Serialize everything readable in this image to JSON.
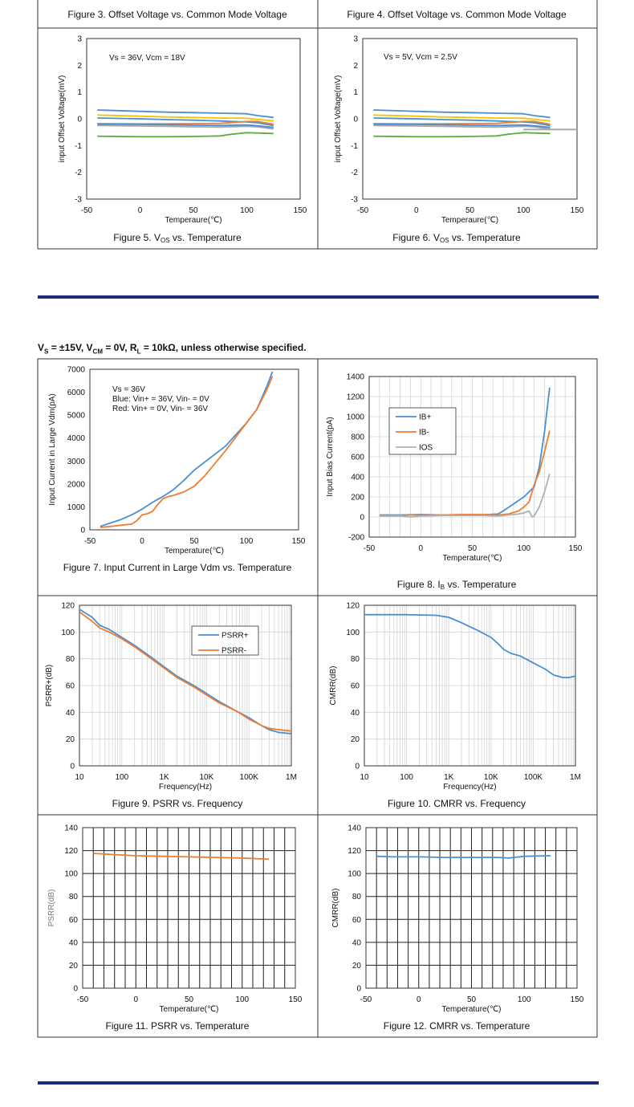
{
  "section": {
    "conditions": "Vs = ±15V, VCM = 0V, RL = 10kΩ, unless otherwise specified.",
    "cond_parts": {
      "vs": "V",
      "vs_sub": "S",
      "p1": " = ±15V, V",
      "vcm_sub": "CM",
      "p2": " = 0V, R",
      "rl_sub": "L",
      "p3": " = 10kΩ, unless otherwise specified."
    }
  },
  "colors": {
    "frame": "#333333",
    "rule": "#1f2a80",
    "grid": "#d4d4d4",
    "blue": "#4a8fd2",
    "orange": "#ed7d31",
    "gray": "#a6a6a6",
    "green": "#5fae3c",
    "yellow": "#f4c400",
    "ios_gray": "#b0b0b0"
  },
  "chart_data": [
    {
      "id": "fig3",
      "type": "caption",
      "title": "Figure 3. Offset Voltage vs. Common Mode Voltage"
    },
    {
      "id": "fig4",
      "type": "caption",
      "title": "Figure 4. Offset Voltage vs. Common Mode Voltage"
    },
    {
      "id": "fig5",
      "type": "line",
      "title": "Figure 5. VOS vs. Temperature",
      "xlabel": "Temperaure(℃)",
      "ylabel": "input Offset Voltage(mV)",
      "xlim": [
        -50,
        150
      ],
      "ylim": [
        -3,
        3
      ],
      "xticks": [
        -50,
        0,
        50,
        100,
        150
      ],
      "yticks": [
        -3,
        -2,
        -1,
        0,
        1,
        2,
        3
      ],
      "grid": false,
      "annotation": [
        "Vs = 36V, Vcm = 18V"
      ],
      "series": [
        {
          "color": "blue",
          "x": [
            -40,
            0,
            25,
            50,
            75,
            100,
            110,
            125
          ],
          "y": [
            0.33,
            0.28,
            0.25,
            0.23,
            0.21,
            0.19,
            0.12,
            0.05
          ]
        },
        {
          "color": "yellow",
          "x": [
            -40,
            0,
            25,
            50,
            75,
            100,
            110,
            125
          ],
          "y": [
            0.14,
            0.1,
            0.07,
            0.05,
            0.03,
            0.02,
            -0.02,
            -0.08
          ]
        },
        {
          "color": "blue",
          "x": [
            -40,
            0,
            25,
            50,
            75,
            100,
            110,
            125
          ],
          "y": [
            0.03,
            0.0,
            -0.03,
            -0.05,
            -0.08,
            -0.12,
            -0.15,
            -0.25
          ]
        },
        {
          "color": "orange",
          "x": [
            -40,
            0,
            25,
            50,
            75,
            100,
            110,
            125
          ],
          "y": [
            -0.18,
            -0.19,
            -0.19,
            -0.18,
            -0.17,
            -0.1,
            -0.1,
            -0.2
          ]
        },
        {
          "color": "gray",
          "x": [
            -40,
            0,
            25,
            50,
            75,
            100,
            110,
            125
          ],
          "y": [
            -0.25,
            -0.27,
            -0.28,
            -0.3,
            -0.31,
            -0.28,
            -0.3,
            -0.38
          ]
        },
        {
          "color": "blue",
          "x": [
            -40,
            0,
            25,
            50,
            75,
            100,
            110,
            125
          ],
          "y": [
            -0.2,
            -0.21,
            -0.22,
            -0.24,
            -0.25,
            -0.23,
            -0.26,
            -0.32
          ]
        },
        {
          "color": "green",
          "x": [
            -40,
            0,
            25,
            50,
            75,
            85,
            100,
            125
          ],
          "y": [
            -0.65,
            -0.67,
            -0.67,
            -0.66,
            -0.64,
            -0.58,
            -0.52,
            -0.55
          ]
        }
      ]
    },
    {
      "id": "fig6",
      "type": "line",
      "title": "Figure 6. VOS vs. Temperature",
      "xlabel": "Temperaure(℃)",
      "ylabel": "input Offset Voltage(mV)",
      "xlim": [
        -50,
        150
      ],
      "ylim": [
        -3,
        3
      ],
      "xticks": [
        -50,
        0,
        50,
        100,
        150
      ],
      "yticks": [
        -3,
        -2,
        -1,
        0,
        1,
        2,
        3
      ],
      "grid": false,
      "annotation": [
        "Vs = 5V, Vcm = 2.5V"
      ],
      "series": [
        {
          "color": "blue",
          "x": [
            -40,
            0,
            25,
            50,
            75,
            100,
            110,
            125
          ],
          "y": [
            0.33,
            0.28,
            0.25,
            0.23,
            0.21,
            0.19,
            0.12,
            0.05
          ]
        },
        {
          "color": "yellow",
          "x": [
            -40,
            0,
            25,
            50,
            75,
            100,
            110,
            125
          ],
          "y": [
            0.14,
            0.1,
            0.07,
            0.05,
            0.03,
            0.02,
            -0.02,
            -0.08
          ]
        },
        {
          "color": "blue",
          "x": [
            -40,
            0,
            25,
            50,
            75,
            100,
            110,
            125
          ],
          "y": [
            0.03,
            0.0,
            -0.03,
            -0.05,
            -0.08,
            -0.12,
            -0.15,
            -0.25
          ]
        },
        {
          "color": "orange",
          "x": [
            -40,
            0,
            25,
            50,
            75,
            100,
            110,
            125
          ],
          "y": [
            -0.18,
            -0.19,
            -0.19,
            -0.18,
            -0.17,
            -0.1,
            -0.1,
            -0.2
          ]
        },
        {
          "color": "gray",
          "x": [
            -40,
            0,
            25,
            50,
            75,
            100,
            110,
            125
          ],
          "y": [
            -0.25,
            -0.27,
            -0.28,
            -0.3,
            -0.31,
            -0.28,
            -0.3,
            -0.38
          ]
        },
        {
          "color": "blue",
          "x": [
            -40,
            0,
            25,
            50,
            75,
            100,
            110,
            125
          ],
          "y": [
            -0.2,
            -0.21,
            -0.22,
            -0.24,
            -0.25,
            -0.23,
            -0.26,
            -0.32
          ]
        },
        {
          "color": "green",
          "x": [
            -40,
            0,
            25,
            50,
            75,
            85,
            100,
            125
          ],
          "y": [
            -0.65,
            -0.67,
            -0.67,
            -0.66,
            -0.64,
            -0.58,
            -0.52,
            -0.55
          ]
        },
        {
          "color": "gray",
          "x": [
            100,
            150
          ],
          "y": [
            -0.4,
            -0.4
          ]
        }
      ]
    },
    {
      "id": "fig7",
      "type": "line",
      "title": "Figure 7. Input Current in Large Vdm vs. Temperature",
      "xlabel": "Temperature(℃)",
      "ylabel": "Input Current in Large Vdm(pA)",
      "xlim": [
        -50,
        150
      ],
      "ylim": [
        0,
        7000
      ],
      "xticks": [
        -50,
        0,
        50,
        100,
        150
      ],
      "yticks": [
        0,
        1000,
        2000,
        3000,
        4000,
        5000,
        6000,
        7000
      ],
      "grid": false,
      "annotation": [
        "Vs = 36V",
        "Blue: Vin+ = 36V, Vin- = 0V",
        "Red: Vin+ = 0V, Vin- = 36V"
      ],
      "series": [
        {
          "color": "blue",
          "x": [
            -40,
            -30,
            -20,
            -10,
            0,
            10,
            20,
            30,
            40,
            50,
            60,
            70,
            80,
            90,
            100,
            110,
            120,
            125
          ],
          "y": [
            150,
            300,
            450,
            650,
            900,
            1200,
            1450,
            1750,
            2150,
            2600,
            2950,
            3300,
            3650,
            4150,
            4650,
            5250,
            6300,
            6900
          ]
        },
        {
          "color": "orange",
          "x": [
            -40,
            -30,
            -20,
            -10,
            -5,
            0,
            5,
            10,
            15,
            20,
            25,
            30,
            40,
            50,
            60,
            70,
            80,
            90,
            100,
            110,
            120,
            125
          ],
          "y": [
            100,
            150,
            200,
            250,
            400,
            650,
            700,
            800,
            1100,
            1350,
            1450,
            1500,
            1650,
            1900,
            2350,
            2900,
            3450,
            4050,
            4650,
            5250,
            6150,
            6700
          ]
        }
      ]
    },
    {
      "id": "fig8",
      "type": "line",
      "title": "Figure 8. IB vs. Temperature",
      "xlabel": "Temperature(℃)",
      "ylabel": "Input Bias Current(pA)",
      "xlim": [
        -50,
        150
      ],
      "ylim": [
        -200,
        1400
      ],
      "xticks": [
        -50,
        0,
        50,
        100,
        150
      ],
      "yticks": [
        -200,
        0,
        200,
        400,
        600,
        800,
        1000,
        1200,
        1400
      ],
      "grid": true,
      "legend": "upper-left",
      "series": [
        {
          "name": "IB+",
          "color": "blue",
          "x": [
            -40,
            -20,
            0,
            20,
            40,
            60,
            75,
            80,
            90,
            100,
            110,
            115,
            120,
            125
          ],
          "y": [
            20,
            20,
            25,
            20,
            22,
            22,
            30,
            60,
            130,
            200,
            300,
            500,
            850,
            1290
          ]
        },
        {
          "name": "IB-",
          "color": "orange",
          "x": [
            -40,
            -20,
            -10,
            0,
            20,
            40,
            60,
            75,
            85,
            95,
            100,
            105,
            110,
            115,
            120,
            125
          ],
          "y": [
            15,
            15,
            20,
            20,
            20,
            25,
            25,
            20,
            30,
            60,
            100,
            150,
            320,
            450,
            650,
            860
          ]
        },
        {
          "name": "IOS",
          "color": "ios_gray",
          "x": [
            -40,
            -20,
            -10,
            0,
            20,
            40,
            60,
            75,
            85,
            95,
            100,
            105,
            108,
            110,
            115,
            120,
            125
          ],
          "y": [
            10,
            10,
            0,
            10,
            15,
            15,
            15,
            10,
            20,
            30,
            40,
            60,
            0,
            10,
            100,
            250,
            430
          ]
        }
      ]
    },
    {
      "id": "fig9",
      "type": "line",
      "title": "Figure 9. PSRR vs. Frequency",
      "xlabel": "Frequency(Hz)",
      "ylabel": "PSRR+(dB)",
      "xscale": "log",
      "xlim": [
        10,
        1000000
      ],
      "ylim": [
        0,
        120
      ],
      "xticks": [
        10,
        100,
        1000,
        10000,
        100000,
        1000000
      ],
      "xticklabels": [
        "10",
        "100",
        "1K",
        "10K",
        "100K",
        "1M"
      ],
      "yticks": [
        0,
        20,
        40,
        60,
        80,
        100,
        120
      ],
      "grid": true,
      "legend": "upper-right",
      "series": [
        {
          "name": "PSRR+",
          "color": "blue",
          "x": [
            10,
            20,
            30,
            50,
            100,
            200,
            500,
            1000,
            2000,
            5000,
            10000,
            20000,
            50000,
            100000,
            200000,
            300000,
            500000,
            1000000
          ],
          "y": [
            117,
            111,
            105,
            102,
            96,
            90,
            81,
            74,
            67,
            60,
            54,
            48,
            41,
            36,
            30,
            27,
            25,
            24
          ]
        },
        {
          "name": "PSRR-",
          "color": "orange",
          "x": [
            10,
            20,
            30,
            50,
            100,
            200,
            500,
            1000,
            2000,
            5000,
            10000,
            20000,
            50000,
            100000,
            200000,
            300000,
            500000,
            1000000
          ],
          "y": [
            115,
            108,
            103,
            100,
            95,
            89,
            80,
            73,
            66,
            59,
            53,
            47,
            41,
            35,
            30,
            28,
            27,
            26
          ]
        }
      ]
    },
    {
      "id": "fig10",
      "type": "line",
      "title": "Figure 10. CMRR vs. Frequency",
      "xlabel": "Frequency(Hz)",
      "ylabel": "CMRR(dB)",
      "xscale": "log",
      "xlim": [
        10,
        1000000
      ],
      "ylim": [
        0,
        120
      ],
      "xticks": [
        10,
        100,
        1000,
        10000,
        100000,
        1000000
      ],
      "xticklabels": [
        "10",
        "100",
        "1K",
        "10K",
        "100K",
        "1M"
      ],
      "yticks": [
        0,
        20,
        40,
        60,
        80,
        100,
        120
      ],
      "grid": true,
      "series": [
        {
          "color": "blue",
          "x": [
            10,
            100,
            500,
            1000,
            2000,
            5000,
            10000,
            15000,
            20000,
            30000,
            50000,
            100000,
            200000,
            300000,
            500000,
            700000,
            1000000
          ],
          "y": [
            113,
            113,
            112.5,
            111,
            107,
            101,
            96,
            91,
            87,
            84,
            82,
            77,
            72,
            68,
            66,
            66,
            67
          ]
        }
      ]
    },
    {
      "id": "fig11",
      "type": "line",
      "title": "Figure 11. PSRR vs. Temperature",
      "xlabel": "Temperature(℃)",
      "ylabel": "PSRR(dB)",
      "xlim": [
        -50,
        150
      ],
      "ylim": [
        0,
        140
      ],
      "xticks": [
        -50,
        0,
        50,
        100,
        150
      ],
      "yticks": [
        0,
        20,
        40,
        60,
        80,
        100,
        120,
        140
      ],
      "grid": true,
      "series": [
        {
          "color": "orange",
          "x": [
            -40,
            -20,
            0,
            25,
            50,
            75,
            100,
            125
          ],
          "y": [
            117.5,
            116.5,
            115.5,
            115,
            114.5,
            114,
            113.5,
            112.5
          ]
        }
      ]
    },
    {
      "id": "fig12",
      "type": "line",
      "title": "Figure 12. CMRR vs. Temperature",
      "xlabel": "Temperature(℃)",
      "ylabel": "CMRR(dB)",
      "xlim": [
        -50,
        150
      ],
      "ylim": [
        0,
        140
      ],
      "xticks": [
        -50,
        0,
        50,
        100,
        150
      ],
      "yticks": [
        0,
        20,
        40,
        60,
        80,
        100,
        120,
        140
      ],
      "grid": true,
      "series": [
        {
          "color": "blue",
          "x": [
            -40,
            -25,
            0,
            25,
            50,
            75,
            85,
            100,
            125
          ],
          "y": [
            115,
            114.5,
            114.5,
            114,
            114,
            114,
            113.5,
            115,
            115.5
          ]
        }
      ]
    }
  ]
}
